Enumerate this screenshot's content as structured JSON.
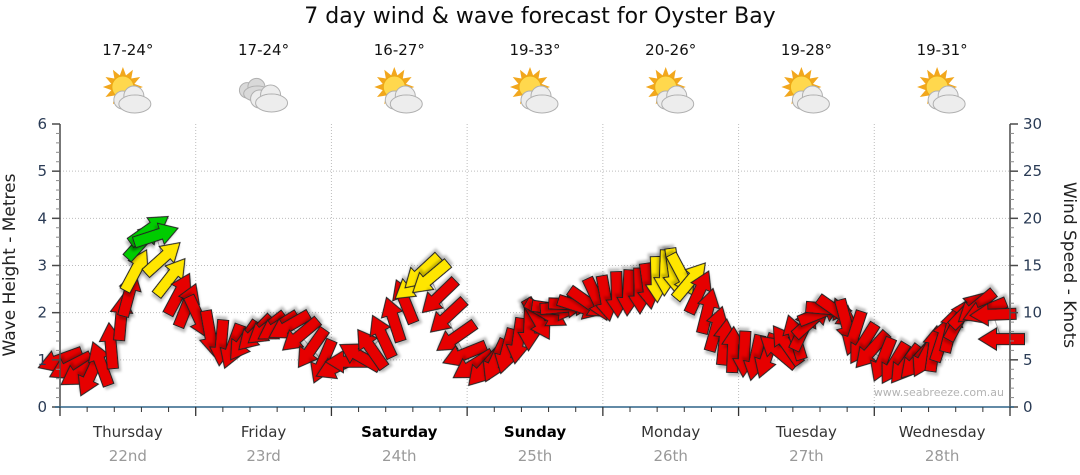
{
  "title": "7 day wind & wave forecast for Oyster Bay",
  "watermark": "www.seabreeze.com.au",
  "colors": {
    "arrow_red": "#e60000",
    "arrow_yellow": "#ffe600",
    "arrow_green": "#00cc00",
    "arrow_outline": "#222222",
    "trend_line": "#aaaaaa",
    "grid": "#bdbdbd",
    "axis_line": "#4a4a4a",
    "bottom_axis_line": "#2e6488",
    "tick_label": "#2a3b55",
    "axis_title": "#222222",
    "day_label": "#333333",
    "day_label_weekend": "#000000",
    "date_label": "#999999",
    "temp_label": "#111111",
    "sun_ray": "#f2a71d",
    "sun_core": "#ffd84d",
    "cloud_fill": "#ededed",
    "cloud_back_fill": "#d9d9d9",
    "cloud_stroke": "#b0b0b0"
  },
  "chart_data": {
    "type": "wind-vector-timeseries",
    "title": "7 day wind & wave forecast for Oyster Bay",
    "x_hours_range": [
      0,
      168
    ],
    "left_axis": {
      "label": "Wave Height - Metres",
      "min": 0,
      "max": 6,
      "major_ticks": [
        0,
        1,
        2,
        3,
        4,
        5,
        6
      ],
      "minor_step": 0.2
    },
    "right_axis": {
      "label": "Wind Speed - Knots",
      "min": 0,
      "max": 30,
      "major_ticks": [
        0,
        5,
        10,
        15,
        20,
        25,
        30
      ],
      "minor_step": 1
    },
    "grid": {
      "horizontal_at_knots": [
        5,
        10,
        15,
        20,
        25
      ],
      "vertical_at_day_boundaries": true,
      "style": "dotted"
    },
    "days": [
      {
        "name": "Thursday",
        "date": "22nd",
        "bold": false,
        "temp": "17-24°",
        "icon": "sun-cloud"
      },
      {
        "name": "Friday",
        "date": "23rd",
        "bold": false,
        "temp": "17-24°",
        "icon": "clouds"
      },
      {
        "name": "Saturday",
        "date": "24th",
        "bold": true,
        "temp": "16-27°",
        "icon": "sun-cloud"
      },
      {
        "name": "Sunday",
        "date": "25th",
        "bold": true,
        "temp": "19-33°",
        "icon": "sun-cloud"
      },
      {
        "name": "Monday",
        "date": "26th",
        "bold": false,
        "temp": "20-26°",
        "icon": "sun-cloud"
      },
      {
        "name": "Tuesday",
        "date": "27th",
        "bold": false,
        "temp": "19-28°",
        "icon": "sun-cloud"
      },
      {
        "name": "Wednesday",
        "date": "28th",
        "bold": false,
        "temp": "19-31°",
        "icon": "sun-cloud"
      }
    ],
    "speed_color_thresholds": {
      "yellow_min_kn": 13,
      "green_min_kn": 17
    },
    "point_format": [
      "hour_from_thursday_00",
      "wind_speed_knots",
      "arrow_pointing_direction_deg_0N_90E"
    ],
    "points": [
      [
        0,
        5,
        250
      ],
      [
        1.8,
        4.3,
        243
      ],
      [
        3.6,
        3.7,
        237
      ],
      [
        5.4,
        3.4,
        205
      ],
      [
        7.2,
        4.6,
        340
      ],
      [
        9,
        6.5,
        355
      ],
      [
        10.8,
        9.5,
        5
      ],
      [
        12.2,
        12,
        15
      ],
      [
        13.4,
        14.5,
        28
      ],
      [
        14.6,
        17.6,
        42
      ],
      [
        15.8,
        18.8,
        55
      ],
      [
        17,
        18.2,
        72
      ],
      [
        18.2,
        15.8,
        48
      ],
      [
        19.6,
        13.8,
        38
      ],
      [
        21,
        12,
        28
      ],
      [
        22.5,
        10.8,
        22
      ],
      [
        24.5,
        9.5,
        155
      ],
      [
        26.5,
        7.8,
        170
      ],
      [
        28.5,
        6.8,
        185
      ],
      [
        30.5,
        6.4,
        200
      ],
      [
        32.5,
        7,
        215
      ],
      [
        34.5,
        7.8,
        225
      ],
      [
        36.5,
        8.3,
        232
      ],
      [
        38.5,
        8.5,
        238
      ],
      [
        40.5,
        8.6,
        240
      ],
      [
        42.5,
        7.6,
        230
      ],
      [
        44.5,
        6.2,
        215
      ],
      [
        46.5,
        4.8,
        203
      ],
      [
        49,
        4.3,
        245
      ],
      [
        51,
        4.8,
        270
      ],
      [
        53,
        5.4,
        300
      ],
      [
        55,
        6.2,
        325
      ],
      [
        57,
        7.5,
        335
      ],
      [
        59,
        9.3,
        342
      ],
      [
        61,
        11.2,
        338
      ],
      [
        62.5,
        13,
        232
      ],
      [
        64,
        14.3,
        227
      ],
      [
        65.5,
        13.7,
        230
      ],
      [
        67,
        11.7,
        226
      ],
      [
        68.5,
        9.6,
        227
      ],
      [
        70,
        7.4,
        235
      ],
      [
        71.5,
        5.6,
        248
      ],
      [
        73,
        4.4,
        238
      ],
      [
        75,
        4.1,
        222
      ],
      [
        77,
        4.9,
        205
      ],
      [
        79,
        5.9,
        195
      ],
      [
        81,
        7,
        188
      ],
      [
        83,
        8.4,
        182
      ],
      [
        84.5,
        9.3,
        150
      ],
      [
        86,
        9.9,
        120
      ],
      [
        87.5,
        10.4,
        98
      ],
      [
        89,
        10.6,
        85
      ],
      [
        90.5,
        10.9,
        92
      ],
      [
        92,
        10.6,
        108
      ],
      [
        93.5,
        11,
        125
      ],
      [
        95,
        11.4,
        155
      ],
      [
        96.5,
        11.5,
        170
      ],
      [
        98.5,
        11.9,
        178
      ],
      [
        100.5,
        12.1,
        183
      ],
      [
        102.5,
        12.3,
        179
      ],
      [
        104,
        12.8,
        172
      ],
      [
        105.5,
        13.5,
        178
      ],
      [
        107,
        14.2,
        182
      ],
      [
        108.5,
        14.4,
        172
      ],
      [
        110,
        14,
        152
      ],
      [
        111.5,
        13.4,
        40
      ],
      [
        113,
        12.2,
        25
      ],
      [
        114.5,
        10.2,
        14
      ],
      [
        116,
        8.3,
        16
      ],
      [
        117.5,
        6.9,
        6
      ],
      [
        119,
        6.1,
        2
      ],
      [
        121,
        5.6,
        183
      ],
      [
        123,
        5.2,
        192
      ],
      [
        125,
        5.4,
        199
      ],
      [
        127,
        5.9,
        310
      ],
      [
        128.5,
        6.6,
        325
      ],
      [
        130,
        7.4,
        343
      ],
      [
        131.5,
        8.3,
        25
      ],
      [
        133,
        9.2,
        48
      ],
      [
        134.5,
        10,
        68
      ],
      [
        136,
        10.4,
        95
      ],
      [
        137.5,
        10.1,
        125
      ],
      [
        139,
        9,
        165
      ],
      [
        140.5,
        7.8,
        198
      ],
      [
        142,
        6.7,
        212
      ],
      [
        143.5,
        6,
        222
      ],
      [
        145.5,
        5,
        202
      ],
      [
        147.5,
        4.6,
        211
      ],
      [
        149.5,
        4.5,
        217
      ],
      [
        151.5,
        4.9,
        222
      ],
      [
        153,
        5.4,
        208
      ],
      [
        154.5,
        6.2,
        8
      ],
      [
        156,
        7.2,
        18
      ],
      [
        157.5,
        8.2,
        14
      ],
      [
        159,
        9.3,
        28
      ],
      [
        160.5,
        10.3,
        44
      ],
      [
        162,
        10.6,
        230
      ],
      [
        163.5,
        10.2,
        248
      ],
      [
        165,
        9.8,
        268
      ],
      [
        166.5,
        7.2,
        270
      ]
    ]
  }
}
